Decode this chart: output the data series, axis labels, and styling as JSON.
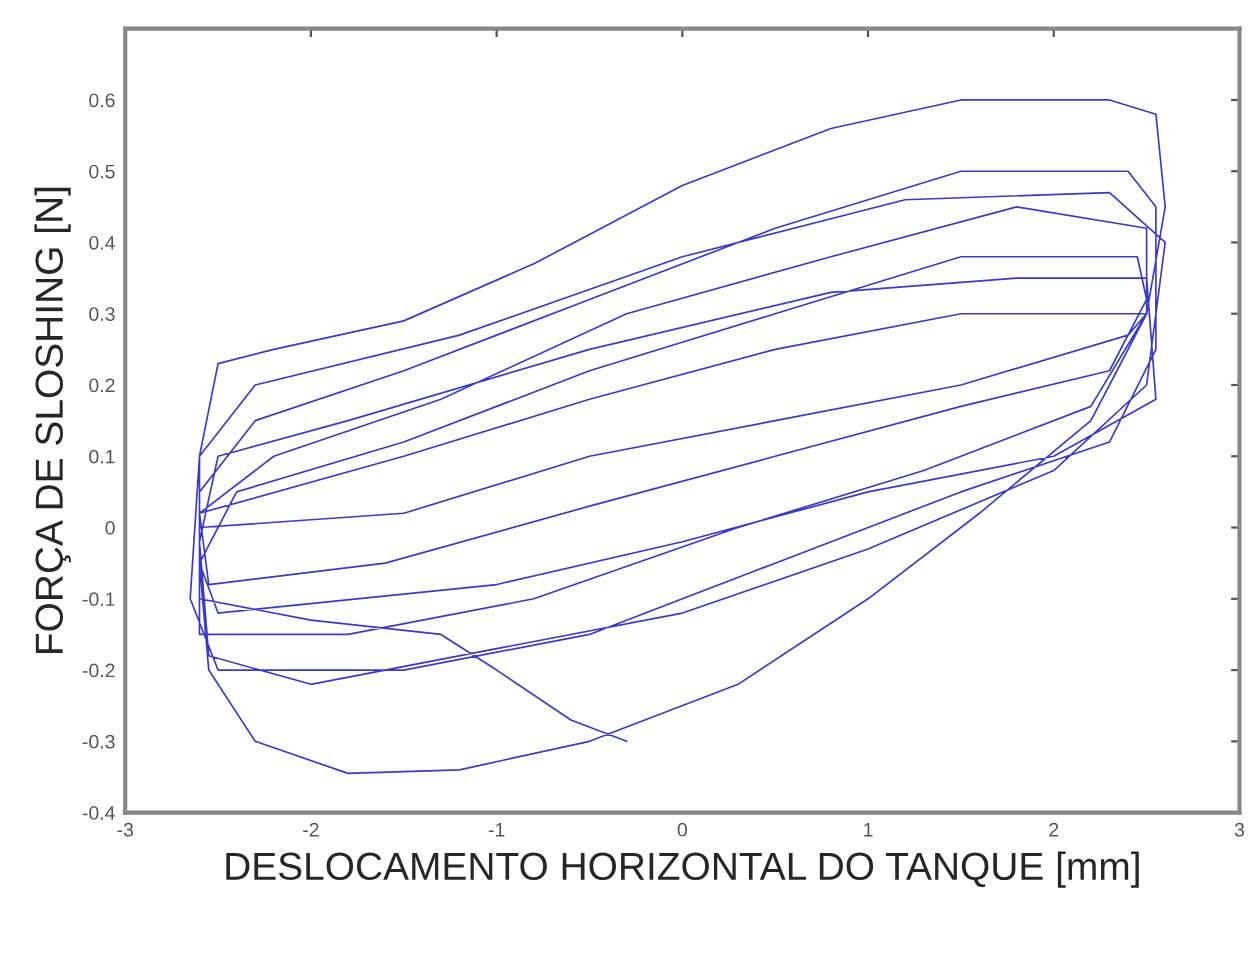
{
  "chart_data": {
    "type": "line",
    "xlabel": "DESLOCAMENTO HORIZONTAL DO TANQUE [mm]",
    "ylabel": "FORÇA DE SLOSHING [N]",
    "xlim": [
      -3,
      3
    ],
    "xticks": [
      -3,
      -2,
      -1,
      0,
      1,
      2,
      3
    ],
    "ylim": [
      -0.4,
      0.7
    ],
    "yticks": [
      -0.4,
      -0.3,
      -0.2,
      -0.1,
      0,
      0.1,
      0.2,
      0.3,
      0.4,
      0.5,
      0.6
    ],
    "grid": false,
    "legend": false,
    "marker": "none",
    "line_style": "solid",
    "series": [
      {
        "color": "#3a3ac8",
        "x": [
          -2.6,
          -2.55,
          -2.3,
          -1.8,
          -1.2,
          -0.5,
          0.3,
          1.0,
          1.6,
          2.2,
          2.5,
          2.6,
          2.55,
          2.3,
          1.5,
          0.8,
          0,
          -0.8,
          -1.5,
          -2.2,
          -2.5,
          -2.6,
          -2.65,
          -2.5,
          -1.5,
          -0.5,
          0.5,
          1.5,
          2.3,
          2.55,
          2.55,
          2.4,
          1.5,
          0.5,
          -0.5,
          -1.5,
          -2.3,
          -2.6,
          -2.6,
          -1.8,
          -0.8,
          0.3,
          1.3,
          2.2,
          2.5,
          2.5,
          1.8,
          0.8,
          -0.3,
          -1.3,
          -2.2,
          -2.6,
          -2.55,
          -1.6,
          -0.5,
          0.5,
          1.5,
          2.3,
          2.5,
          2.45,
          1.5,
          0.5,
          -0.5,
          -1.5,
          -2.4,
          -2.6,
          -2.5,
          -1,
          0,
          1,
          2,
          2.55,
          2.5,
          1.8,
          0.8,
          -0.5,
          -1.8,
          -2.5,
          -2.6,
          -2.55,
          -2.0,
          -1,
          0,
          1.0,
          2.0,
          2.5,
          2.6,
          2.3,
          1.2,
          0,
          -1.2,
          -2.3,
          -2.6,
          -2.6,
          -1.5,
          -0.5,
          0.5,
          1.5,
          2.4,
          2.5,
          1.5,
          0.5,
          -0.5,
          -1.5,
          -2.6,
          -2.6,
          -2.0,
          -1.3,
          -1.0,
          -0.6,
          -0.3
        ],
        "values": [
          -0.05,
          -0.2,
          -0.3,
          -0.345,
          -0.34,
          -0.3,
          -0.22,
          -0.1,
          0.02,
          0.15,
          0.3,
          0.45,
          0.58,
          0.6,
          0.6,
          0.56,
          0.48,
          0.37,
          0.29,
          0.25,
          0.23,
          0.1,
          -0.1,
          -0.2,
          -0.2,
          -0.15,
          -0.05,
          0.05,
          0.12,
          0.25,
          0.45,
          0.5,
          0.5,
          0.42,
          0.32,
          0.22,
          0.15,
          0.05,
          -0.15,
          -0.15,
          -0.1,
          0,
          0.08,
          0.17,
          0.3,
          0.42,
          0.45,
          0.38,
          0.3,
          0.18,
          0.1,
          0.02,
          -0.08,
          -0.05,
          0.03,
          0.1,
          0.17,
          0.22,
          0.32,
          0.38,
          0.38,
          0.3,
          0.22,
          0.12,
          0.05,
          -0.05,
          -0.12,
          -0.08,
          -0.02,
          0.05,
          0.1,
          0.18,
          0.35,
          0.35,
          0.33,
          0.25,
          0.15,
          0.1,
          -0.02,
          -0.18,
          -0.22,
          -0.17,
          -0.12,
          -0.03,
          0.08,
          0.2,
          0.4,
          0.47,
          0.46,
          0.38,
          0.27,
          0.2,
          0.1,
          0.0,
          0.02,
          0.1,
          0.15,
          0.2,
          0.27,
          0.3,
          0.3,
          0.25,
          0.18,
          0.1,
          0.02,
          -0.1,
          -0.13,
          -0.15,
          -0.2,
          -0.27,
          -0.3
        ]
      }
    ]
  }
}
